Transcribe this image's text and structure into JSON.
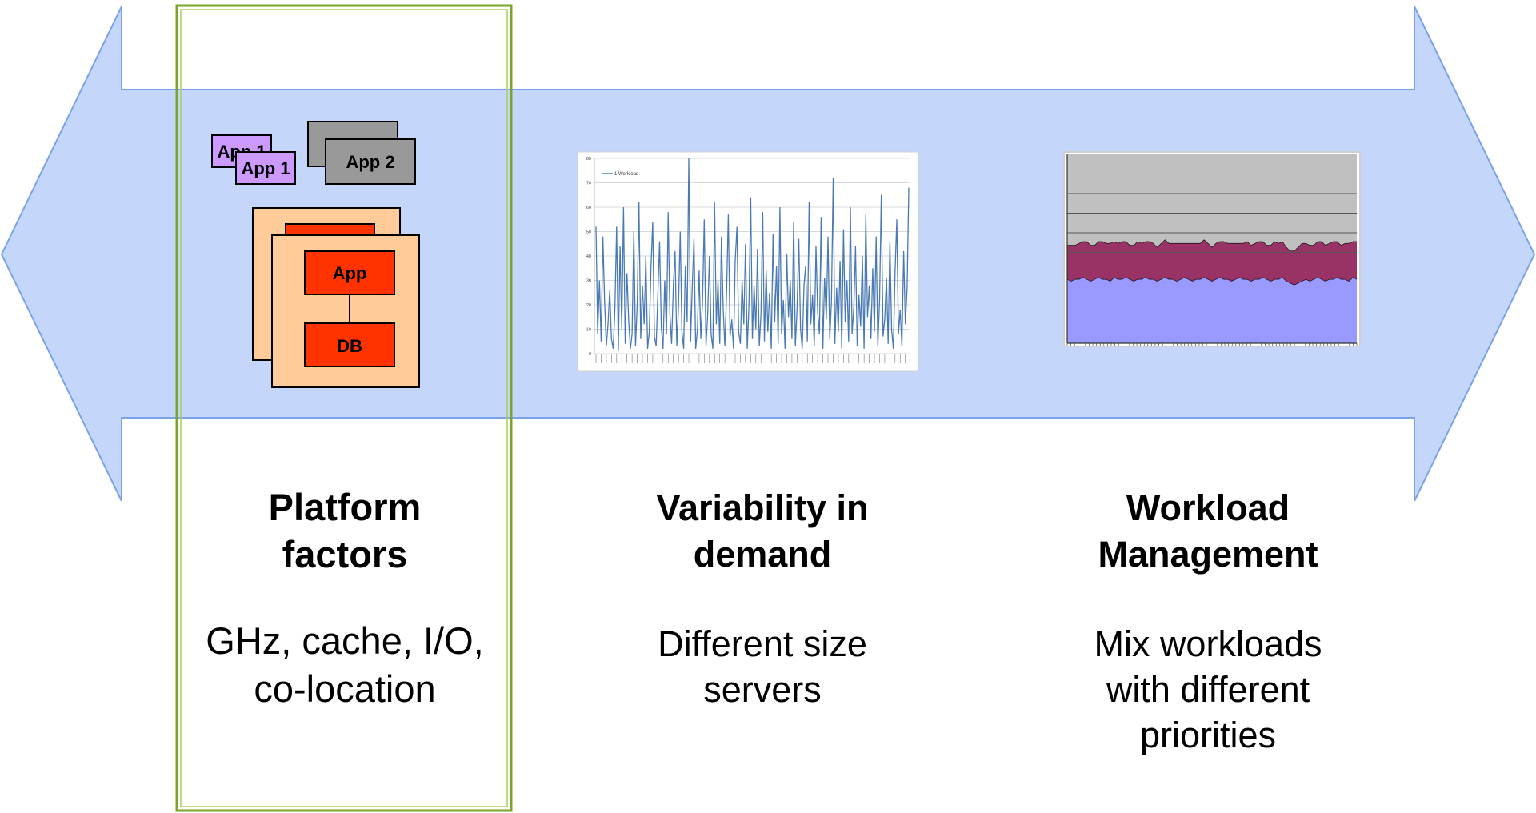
{
  "platform": {
    "heading": [
      "Platform",
      "factors"
    ],
    "body": [
      "GHz, cache, I/O,",
      "co-location"
    ],
    "icon": {
      "app1_back": "App 1",
      "app1_front": "App 1",
      "app2_back": "App 2",
      "app2_front": "App 2",
      "app": "App",
      "db": "DB"
    }
  },
  "variability": {
    "heading": [
      "Variability in",
      "demand"
    ],
    "body": [
      "Different size",
      "servers"
    ],
    "chart_legend": "1 Workload"
  },
  "workload": {
    "heading": [
      "Workload",
      "Management"
    ],
    "body": [
      "Mix workloads",
      "with different",
      "priorities"
    ]
  },
  "colors": {
    "arrow_fill": "#c5d6fb",
    "arrow_stroke": "#7aa2ec",
    "highlight_border": "#7aa529",
    "app_purple": "#cc99ff",
    "app_gray": "#999999",
    "server_peach": "#ffcc99",
    "server_red": "#ff3300",
    "spike_line": "#4a7ab5",
    "area_gray": "#c0c0c0",
    "area_maroon": "#993366",
    "area_periwinkle": "#9999ff"
  },
  "chart_data": [
    {
      "type": "line",
      "legend": [
        "1 Workload"
      ],
      "ylim": [
        0,
        80
      ],
      "yticks": [
        0,
        10,
        20,
        30,
        40,
        50,
        60,
        70,
        80
      ],
      "grid": true,
      "legend_position": "top-left",
      "series": [
        {
          "name": "1 Workload",
          "values": [
            52,
            8,
            30,
            5,
            48,
            22,
            3,
            12,
            26,
            6,
            2,
            18,
            52,
            1,
            44,
            10,
            60,
            4,
            33,
            14,
            2,
            8,
            50,
            3,
            21,
            62,
            6,
            28,
            12,
            40,
            2,
            9,
            35,
            54,
            7,
            3,
            24,
            46,
            11,
            2,
            30,
            8,
            58,
            16,
            4,
            28,
            42,
            3,
            19,
            50,
            9,
            2,
            36,
            13,
            80,
            5,
            27,
            47,
            2,
            10,
            34,
            6,
            22,
            55,
            3,
            16,
            40,
            8,
            2,
            62,
            12,
            30,
            4,
            48,
            18,
            3,
            26,
            57,
            7,
            14,
            2,
            38,
            52,
            9,
            4,
            30,
            12,
            45,
            2,
            20,
            64,
            6,
            28,
            10,
            43,
            3,
            16,
            58,
            5,
            34,
            9,
            25,
            2,
            49,
            13,
            36,
            4,
            60,
            8,
            22,
            2,
            41,
            15,
            30,
            6,
            54,
            3,
            19,
            47,
            10,
            2,
            28,
            36,
            5,
            62,
            12,
            24,
            3,
            44,
            17,
            8,
            56,
            2,
            31,
            14,
            48,
            6,
            21,
            72,
            4,
            27,
            9,
            38,
            2,
            51,
            13,
            30,
            5,
            60,
            8,
            19,
            44,
            3,
            24,
            11,
            40,
            2,
            57,
            15,
            28,
            6,
            35,
            9,
            48,
            3,
            22,
            65,
            7,
            14,
            31,
            4,
            46,
            10,
            2,
            33,
            55,
            8,
            18,
            3,
            42,
            12,
            27,
            68
          ]
        }
      ]
    },
    {
      "type": "area",
      "stacked": true,
      "grid": true,
      "series": [
        {
          "name": "",
          "values": [
            34,
            33,
            34,
            34,
            35,
            34,
            33,
            34,
            35,
            34,
            34,
            33,
            35,
            34,
            34,
            35,
            34,
            33,
            34,
            34,
            35,
            34,
            34,
            33,
            34,
            35,
            34,
            34,
            33,
            34,
            35,
            34,
            33,
            34,
            34,
            35,
            34,
            33,
            34,
            35,
            34,
            34,
            33,
            34,
            35,
            34,
            34,
            33,
            34,
            34,
            35,
            34,
            33,
            34,
            34,
            35,
            33,
            32,
            31,
            32,
            33,
            34,
            33,
            34,
            35,
            34,
            33,
            34,
            34,
            35,
            34,
            34,
            33,
            35,
            34
          ]
        },
        {
          "name": "",
          "values": [
            18,
            19,
            18,
            19,
            19,
            20,
            19,
            18,
            19,
            20,
            19,
            20,
            19,
            19,
            20,
            19,
            18,
            19,
            20,
            19,
            19,
            20,
            19,
            18,
            19,
            20,
            19,
            19,
            20,
            19,
            18,
            19,
            20,
            19,
            19,
            20,
            19,
            18,
            19,
            19,
            20,
            19,
            20,
            19,
            18,
            19,
            20,
            19,
            19,
            20,
            19,
            18,
            19,
            20,
            19,
            19,
            18,
            17,
            18,
            19,
            20,
            19,
            19,
            18,
            19,
            20,
            19,
            19,
            20,
            19,
            18,
            19,
            20,
            19,
            20
          ]
        },
        {
          "name": "",
          "values": [
            48,
            48,
            48,
            47,
            46,
            46,
            48,
            48,
            46,
            46,
            47,
            47,
            46,
            47,
            46,
            46,
            48,
            48,
            46,
            47,
            46,
            46,
            47,
            49,
            47,
            45,
            47,
            47,
            47,
            47,
            47,
            47,
            47,
            47,
            47,
            45,
            47,
            49,
            47,
            46,
            46,
            47,
            47,
            47,
            47,
            47,
            46,
            48,
            47,
            46,
            46,
            48,
            48,
            46,
            47,
            46,
            49,
            51,
            51,
            49,
            47,
            47,
            48,
            48,
            46,
            46,
            48,
            47,
            46,
            46,
            48,
            47,
            47,
            46,
            46
          ]
        }
      ]
    }
  ]
}
